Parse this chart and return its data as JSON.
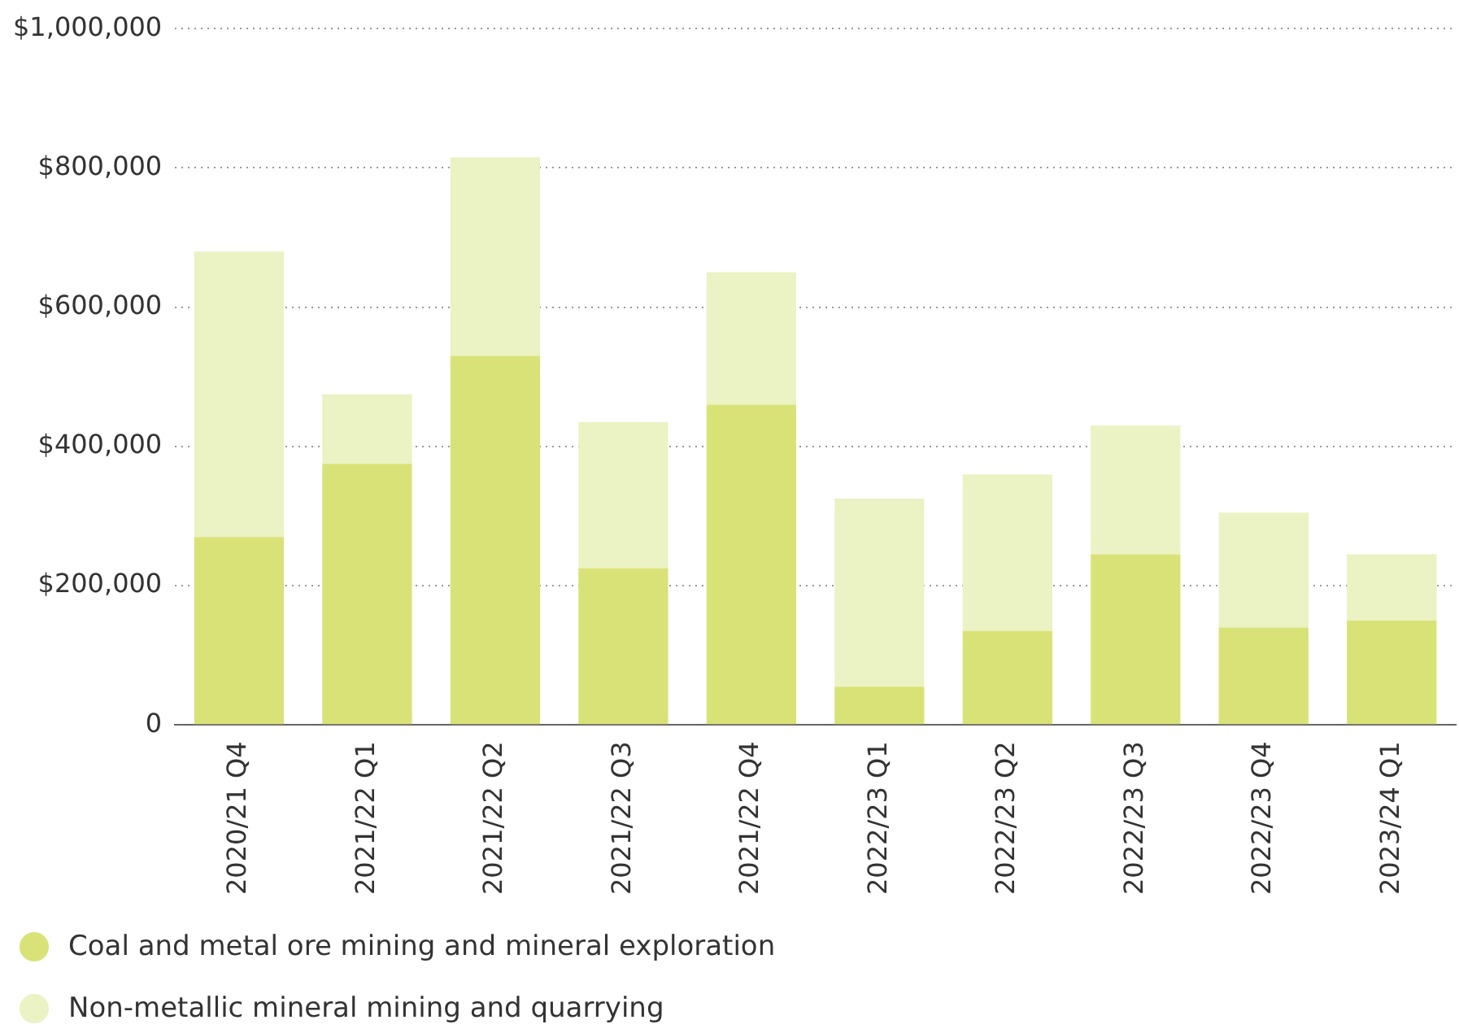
{
  "chart_data": {
    "type": "bar",
    "stacked": true,
    "categories": [
      "2020/21 Q4",
      "2021/22 Q1",
      "2021/22 Q2",
      "2021/22 Q3",
      "2021/22 Q4",
      "2022/23 Q1",
      "2022/23 Q2",
      "2022/23 Q3",
      "2022/23 Q4",
      "2023/24 Q1"
    ],
    "series": [
      {
        "name": "Coal and metal ore mining and mineral exploration",
        "color": "#d9e276",
        "values": [
          270000,
          375000,
          530000,
          225000,
          460000,
          55000,
          135000,
          245000,
          140000,
          150000
        ]
      },
      {
        "name": "Non-metallic mineral mining and quarrying",
        "color": "#ebf2c3",
        "values": [
          410000,
          100000,
          285000,
          210000,
          190000,
          270000,
          225000,
          185000,
          165000,
          95000
        ]
      }
    ],
    "ylim": [
      0,
      1000000
    ],
    "yticks": [
      {
        "value": 0,
        "label": "0"
      },
      {
        "value": 200000,
        "label": "$200,000"
      },
      {
        "value": 400000,
        "label": "$400,000"
      },
      {
        "value": 600000,
        "label": "$600,000"
      },
      {
        "value": 800000,
        "label": "$800,000"
      },
      {
        "value": 1000000,
        "label": "$1,000,000"
      }
    ],
    "grid": "y",
    "legend": "bottom left"
  }
}
